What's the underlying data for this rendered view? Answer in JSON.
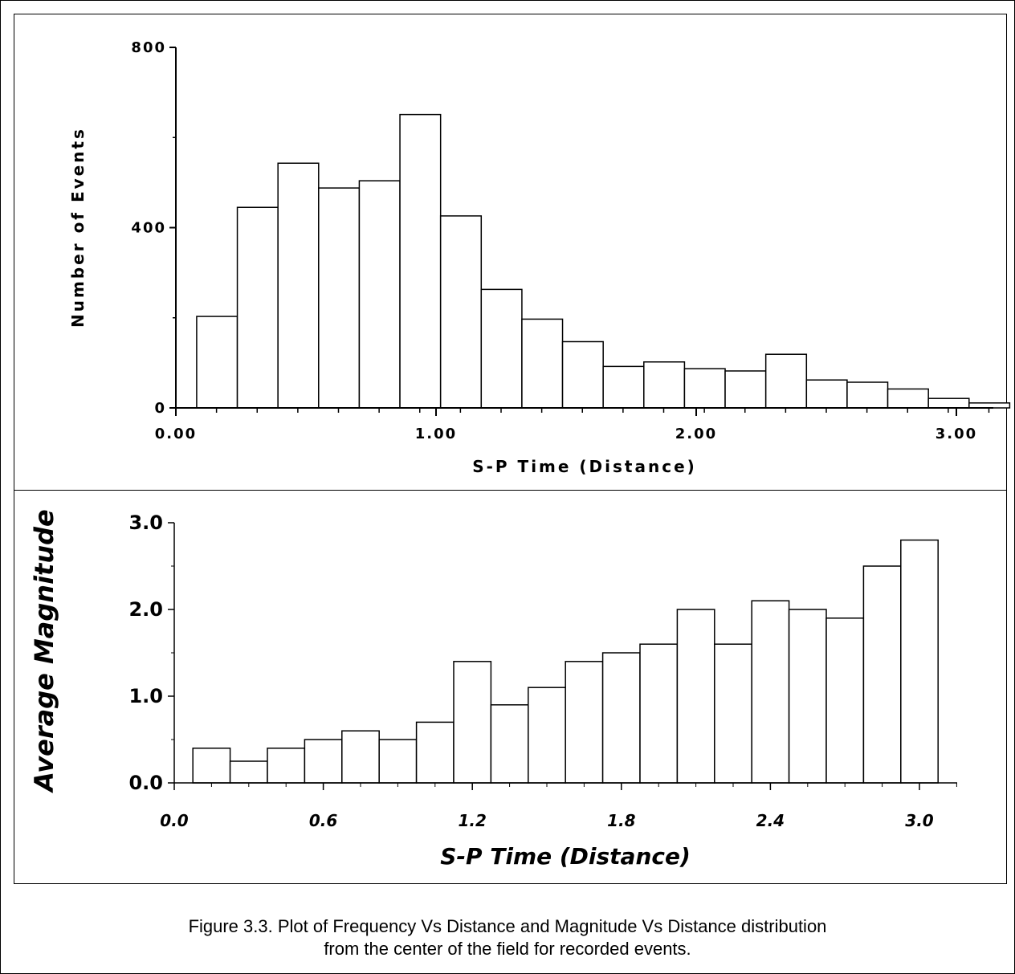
{
  "chart_data": [
    {
      "type": "bar",
      "xlabel": "S-P Time (Distance)",
      "ylabel": "Number of Events",
      "ylim": [
        0,
        800
      ],
      "xlim": [
        0.0,
        3.15
      ],
      "yticks": [
        "0",
        "400",
        "800"
      ],
      "xticks": [
        "0.00",
        "1.00",
        "2.00",
        "3.00"
      ],
      "bin_width": 0.15625,
      "bin_start": 0.08,
      "values": [
        203,
        445,
        543,
        488,
        504,
        651,
        426,
        263,
        197,
        147,
        92,
        102,
        87,
        82,
        119,
        62,
        57,
        42,
        21,
        11
      ],
      "grid": false
    },
    {
      "type": "bar",
      "xlabel": "S-P Time (Distance)",
      "ylabel": "Average Magnitude",
      "ylim": [
        0.0,
        3.0
      ],
      "xlim": [
        0.0,
        3.1
      ],
      "yticks": [
        "0.0",
        "1.0",
        "2.0",
        "3.0"
      ],
      "xticks": [
        "0.0",
        "0.6",
        "1.2",
        "1.8",
        "2.4",
        "3.0"
      ],
      "bin_width": 0.15,
      "bin_start": 0.075,
      "values": [
        0.4,
        0.25,
        0.4,
        0.5,
        0.6,
        0.5,
        0.7,
        1.4,
        0.9,
        1.1,
        1.4,
        1.5,
        1.6,
        2.0,
        1.6,
        2.1,
        2.0,
        1.9,
        2.5,
        2.8
      ],
      "grid": false
    }
  ],
  "caption": {
    "line1": "Figure 3.3. Plot of Frequency Vs Distance and Magnitude Vs Distance distribution",
    "line2": "from the center of the field for recorded events."
  }
}
